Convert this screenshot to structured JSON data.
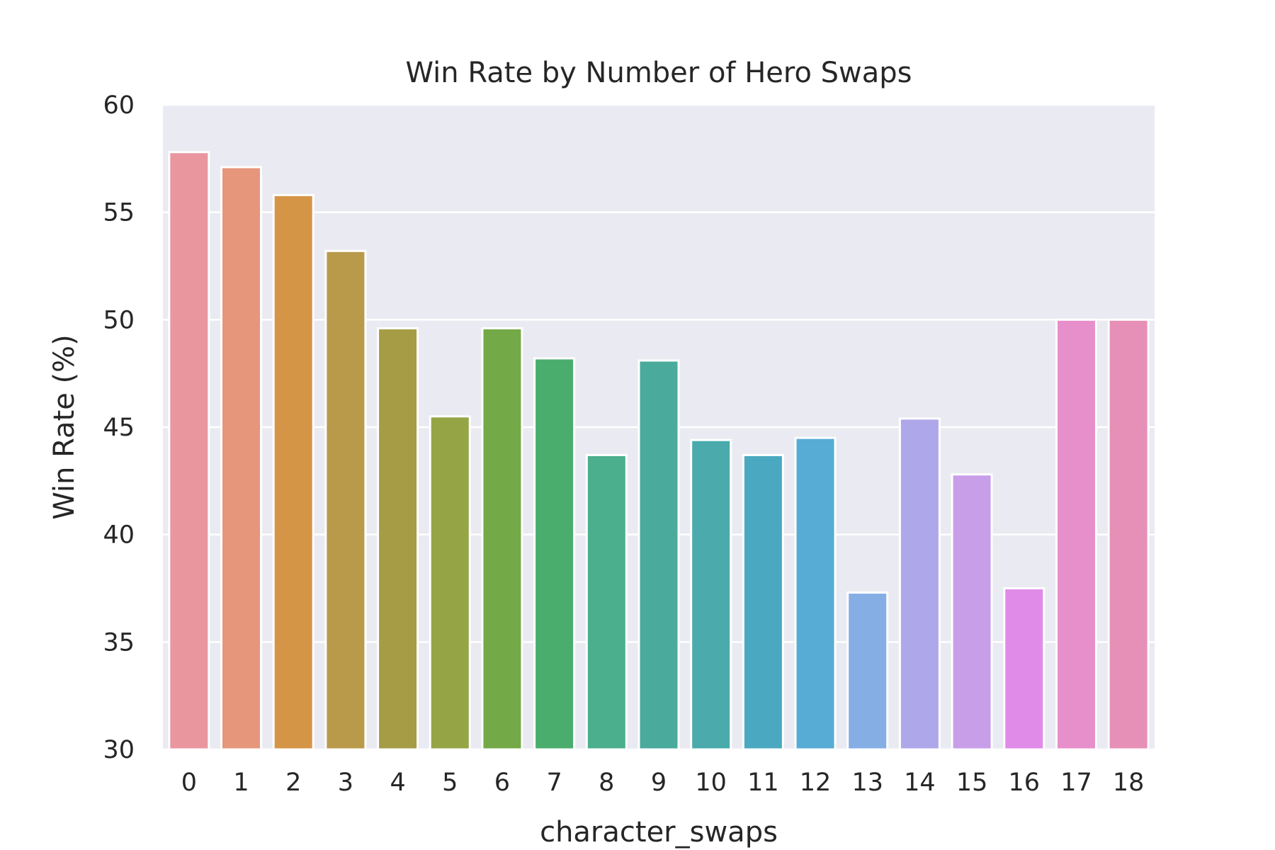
{
  "chart_data": {
    "type": "bar",
    "title": "Win Rate by Number of Hero Swaps",
    "xlabel": "character_swaps",
    "ylabel": "Win Rate (%)",
    "categories": [
      "0",
      "1",
      "2",
      "3",
      "4",
      "5",
      "6",
      "7",
      "8",
      "9",
      "10",
      "11",
      "12",
      "13",
      "14",
      "15",
      "16",
      "17",
      "18"
    ],
    "values": [
      57.8,
      57.1,
      55.8,
      53.2,
      49.6,
      45.5,
      49.6,
      48.2,
      43.7,
      48.1,
      44.4,
      43.7,
      44.5,
      37.3,
      45.4,
      42.8,
      37.5,
      50.0,
      50.0
    ],
    "ylim": [
      30,
      60
    ],
    "yticks": [
      30,
      35,
      40,
      45,
      50,
      55,
      60
    ],
    "grid": true,
    "colors": [
      "#e9969f",
      "#e6967b",
      "#d59546",
      "#b89a4a",
      "#a69c45",
      "#95a545",
      "#73aa47",
      "#4aad6e",
      "#4bae8c",
      "#4aab9c",
      "#4aaaac",
      "#4aa9c0",
      "#56acd4",
      "#85aee5",
      "#aea8ea",
      "#c99ee8",
      "#e18be8",
      "#e78fcb",
      "#e790b7"
    ],
    "background_color": "#eaeaf2",
    "grid_color": "#ffffff",
    "edge_color": "#ffffff"
  }
}
